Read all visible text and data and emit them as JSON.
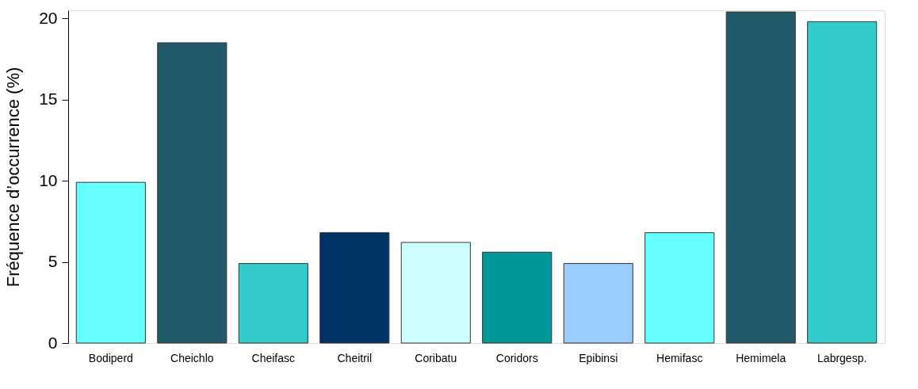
{
  "chart_data": {
    "type": "bar",
    "ylabel": "Fréquence d’occurrence (%)",
    "categories": [
      "Bodiperd",
      "Cheichlo",
      "Cheifasc",
      "Cheitril",
      "Coribatu",
      "Coridors",
      "Epibinsi",
      "Hemifasc",
      "Hemimela",
      "Labrgesp."
    ],
    "values": [
      9.9,
      18.5,
      4.9,
      6.8,
      6.2,
      5.6,
      4.9,
      6.8,
      20.4,
      19.8
    ],
    "colors": [
      "#66ffff",
      "#225a6a",
      "#33cccc",
      "#003366",
      "#ccffff",
      "#009999",
      "#99ccff",
      "#66ffff",
      "#225a6a",
      "#33cccc"
    ],
    "ylim": [
      0,
      20.5
    ],
    "yticks": [
      0,
      5,
      10,
      15,
      20
    ],
    "grid": false
  }
}
